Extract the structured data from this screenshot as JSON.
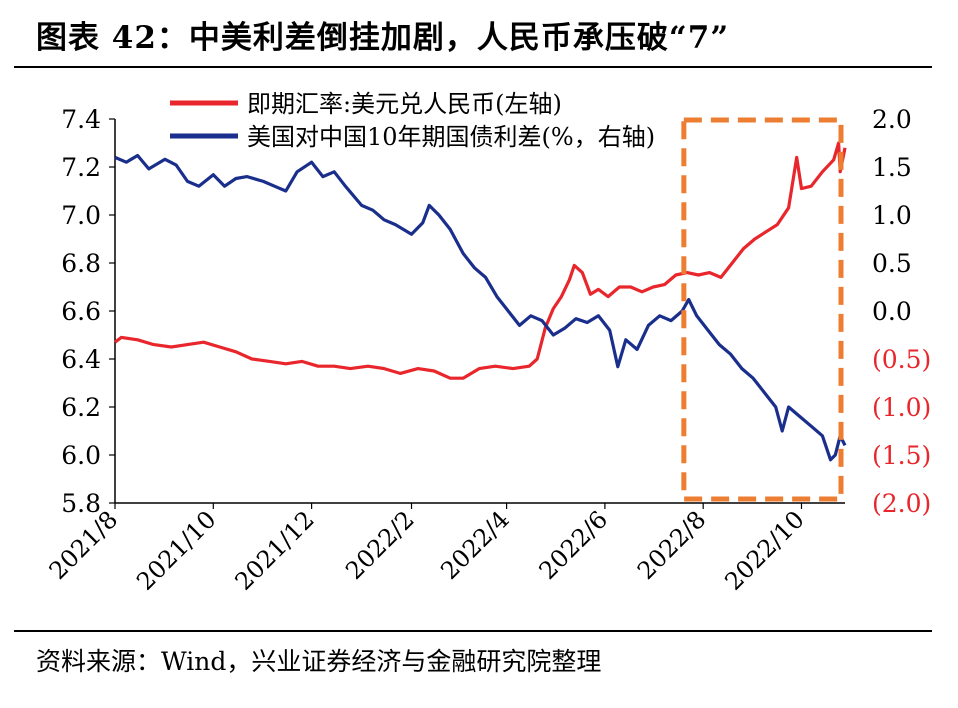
{
  "title": "图表 42：中美利差倒挂加剧，人民币承压破“7”",
  "source": "资料来源：Wind，兴业证券经济与金融研究院整理",
  "chart_data": {
    "type": "line",
    "x_tick_labels": [
      "2021/8",
      "2021/10",
      "2021/12",
      "2022/2",
      "2022/4",
      "2022/6",
      "2022/8",
      "2022/10"
    ],
    "x_range": [
      "2021-08-01",
      "2022-10-28"
    ],
    "y_left": {
      "range": [
        5.8,
        7.4
      ],
      "ticks": [
        "7.4",
        "7.2",
        "7.0",
        "6.8",
        "6.6",
        "6.4",
        "6.2",
        "6.0",
        "5.8"
      ]
    },
    "y_right": {
      "range": [
        -2.0,
        2.0
      ],
      "ticks": [
        "2.0",
        "1.5",
        "1.0",
        "0.5",
        "0.0",
        "(0.5)",
        "(1.0)",
        "(1.5)",
        "(2.0)"
      ],
      "negative_color": "#e8262b"
    },
    "legend_placement": "top-left",
    "highlight_box": {
      "x_from": "2022-07-20",
      "x_to": "2022-10-28",
      "color": "#ed7d31",
      "style": "dashed"
    },
    "series": [
      {
        "name": "即期汇率:美元兑人民币(左轴)",
        "axis": "left",
        "color": "#e8262b",
        "points": [
          [
            "2021-08-01",
            6.47
          ],
          [
            "2021-08-05",
            6.49
          ],
          [
            "2021-08-15",
            6.48
          ],
          [
            "2021-08-25",
            6.46
          ],
          [
            "2021-09-05",
            6.45
          ],
          [
            "2021-09-15",
            6.46
          ],
          [
            "2021-09-25",
            6.47
          ],
          [
            "2021-10-05",
            6.45
          ],
          [
            "2021-10-15",
            6.43
          ],
          [
            "2021-10-25",
            6.4
          ],
          [
            "2021-11-05",
            6.39
          ],
          [
            "2021-11-15",
            6.38
          ],
          [
            "2021-11-25",
            6.39
          ],
          [
            "2021-12-05",
            6.37
          ],
          [
            "2021-12-15",
            6.37
          ],
          [
            "2021-12-25",
            6.36
          ],
          [
            "2022-01-05",
            6.37
          ],
          [
            "2022-01-15",
            6.36
          ],
          [
            "2022-01-25",
            6.34
          ],
          [
            "2022-02-05",
            6.36
          ],
          [
            "2022-02-15",
            6.35
          ],
          [
            "2022-02-25",
            6.32
          ],
          [
            "2022-03-05",
            6.32
          ],
          [
            "2022-03-15",
            6.36
          ],
          [
            "2022-03-25",
            6.37
          ],
          [
            "2022-04-05",
            6.36
          ],
          [
            "2022-04-15",
            6.37
          ],
          [
            "2022-04-20",
            6.4
          ],
          [
            "2022-04-25",
            6.53
          ],
          [
            "2022-04-30",
            6.61
          ],
          [
            "2022-05-05",
            6.66
          ],
          [
            "2022-05-10",
            6.73
          ],
          [
            "2022-05-13",
            6.79
          ],
          [
            "2022-05-18",
            6.76
          ],
          [
            "2022-05-23",
            6.67
          ],
          [
            "2022-05-28",
            6.69
          ],
          [
            "2022-06-03",
            6.66
          ],
          [
            "2022-06-10",
            6.7
          ],
          [
            "2022-06-17",
            6.7
          ],
          [
            "2022-06-24",
            6.68
          ],
          [
            "2022-07-01",
            6.7
          ],
          [
            "2022-07-08",
            6.71
          ],
          [
            "2022-07-15",
            6.75
          ],
          [
            "2022-07-22",
            6.76
          ],
          [
            "2022-07-29",
            6.75
          ],
          [
            "2022-08-05",
            6.76
          ],
          [
            "2022-08-12",
            6.74
          ],
          [
            "2022-08-19",
            6.8
          ],
          [
            "2022-08-26",
            6.86
          ],
          [
            "2022-09-02",
            6.9
          ],
          [
            "2022-09-09",
            6.93
          ],
          [
            "2022-09-16",
            6.96
          ],
          [
            "2022-09-23",
            7.03
          ],
          [
            "2022-09-28",
            7.24
          ],
          [
            "2022-10-01",
            7.11
          ],
          [
            "2022-10-07",
            7.12
          ],
          [
            "2022-10-14",
            7.18
          ],
          [
            "2022-10-21",
            7.23
          ],
          [
            "2022-10-24",
            7.3
          ],
          [
            "2022-10-25",
            7.18
          ],
          [
            "2022-10-28",
            7.28
          ]
        ]
      },
      {
        "name": "美国对中国10年期国债利差(%，右轴)",
        "axis": "right",
        "color": "#1a2e8c",
        "points": [
          [
            "2021-08-01",
            1.6
          ],
          [
            "2021-08-08",
            1.55
          ],
          [
            "2021-08-15",
            1.62
          ],
          [
            "2021-08-22",
            1.48
          ],
          [
            "2021-09-01",
            1.58
          ],
          [
            "2021-09-08",
            1.52
          ],
          [
            "2021-09-15",
            1.35
          ],
          [
            "2021-09-22",
            1.3
          ],
          [
            "2021-10-01",
            1.42
          ],
          [
            "2021-10-08",
            1.3
          ],
          [
            "2021-10-15",
            1.38
          ],
          [
            "2021-10-22",
            1.4
          ],
          [
            "2021-11-01",
            1.35
          ],
          [
            "2021-11-08",
            1.3
          ],
          [
            "2021-11-15",
            1.25
          ],
          [
            "2021-11-22",
            1.45
          ],
          [
            "2021-12-01",
            1.55
          ],
          [
            "2021-12-08",
            1.4
          ],
          [
            "2021-12-15",
            1.45
          ],
          [
            "2021-12-22",
            1.3
          ],
          [
            "2022-01-01",
            1.1
          ],
          [
            "2022-01-08",
            1.05
          ],
          [
            "2022-01-15",
            0.95
          ],
          [
            "2022-01-22",
            0.9
          ],
          [
            "2022-02-01",
            0.8
          ],
          [
            "2022-02-08",
            0.92
          ],
          [
            "2022-02-12",
            1.1
          ],
          [
            "2022-02-18",
            1.0
          ],
          [
            "2022-02-25",
            0.85
          ],
          [
            "2022-03-05",
            0.6
          ],
          [
            "2022-03-12",
            0.45
          ],
          [
            "2022-03-19",
            0.35
          ],
          [
            "2022-03-26",
            0.15
          ],
          [
            "2022-04-02",
            0.0
          ],
          [
            "2022-04-09",
            -0.15
          ],
          [
            "2022-04-16",
            -0.05
          ],
          [
            "2022-04-23",
            -0.1
          ],
          [
            "2022-04-30",
            -0.25
          ],
          [
            "2022-05-07",
            -0.18
          ],
          [
            "2022-05-14",
            -0.08
          ],
          [
            "2022-05-21",
            -0.12
          ],
          [
            "2022-05-28",
            -0.05
          ],
          [
            "2022-06-04",
            -0.2
          ],
          [
            "2022-06-09",
            -0.58
          ],
          [
            "2022-06-14",
            -0.3
          ],
          [
            "2022-06-21",
            -0.4
          ],
          [
            "2022-06-28",
            -0.15
          ],
          [
            "2022-07-05",
            -0.05
          ],
          [
            "2022-07-12",
            -0.1
          ],
          [
            "2022-07-19",
            0.0
          ],
          [
            "2022-07-23",
            0.12
          ],
          [
            "2022-07-28",
            -0.05
          ],
          [
            "2022-08-04",
            -0.2
          ],
          [
            "2022-08-11",
            -0.35
          ],
          [
            "2022-08-18",
            -0.45
          ],
          [
            "2022-08-25",
            -0.6
          ],
          [
            "2022-09-01",
            -0.7
          ],
          [
            "2022-09-08",
            -0.85
          ],
          [
            "2022-09-15",
            -1.0
          ],
          [
            "2022-09-19",
            -1.25
          ],
          [
            "2022-09-23",
            -1.0
          ],
          [
            "2022-09-30",
            -1.1
          ],
          [
            "2022-10-07",
            -1.2
          ],
          [
            "2022-10-14",
            -1.3
          ],
          [
            "2022-10-19",
            -1.55
          ],
          [
            "2022-10-22",
            -1.5
          ],
          [
            "2022-10-25",
            -1.3
          ],
          [
            "2022-10-28",
            -1.4
          ]
        ]
      }
    ]
  }
}
